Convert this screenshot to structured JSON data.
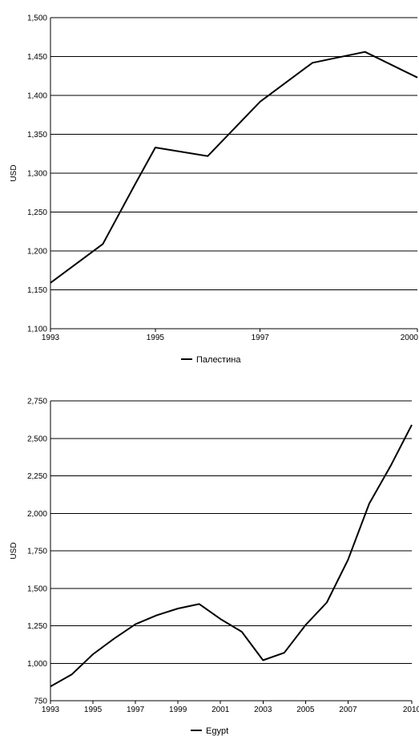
{
  "chart_data": [
    {
      "type": "line",
      "ylabel": "USD",
      "xlabel": "",
      "x_ticks": [
        "1993",
        "1995",
        "1997",
        "2000"
      ],
      "y_ticks": [
        "1,100",
        "1,150",
        "1,200",
        "1,250",
        "1,300",
        "1,350",
        "1,400",
        "1,450",
        "1,500"
      ],
      "xlim": [
        1993,
        2000
      ],
      "ylim": [
        1100,
        1500
      ],
      "grid": "horizontal",
      "legend_position": "bottom-center",
      "series": [
        {
          "name": "Палестина",
          "color": "#000000",
          "x": [
            1993,
            1994,
            1994.6,
            1995,
            1996,
            1997,
            1998,
            1999,
            2000
          ],
          "y": [
            1159,
            1209,
            1284,
            1333,
            1322,
            1392,
            1442,
            1456,
            1423
          ]
        }
      ]
    },
    {
      "type": "line",
      "ylabel": "USD",
      "xlabel": "",
      "x_ticks": [
        "1993",
        "1995",
        "1997",
        "1999",
        "2001",
        "2003",
        "2005",
        "2007",
        "2010"
      ],
      "y_ticks": [
        "750",
        "1,000",
        "1,250",
        "1,500",
        "1,750",
        "2,000",
        "2,250",
        "2,500",
        "2,750"
      ],
      "xlim": [
        1993,
        2010
      ],
      "ylim": [
        750,
        2750
      ],
      "grid": "horizontal",
      "legend_position": "bottom-center",
      "series": [
        {
          "name": "Egypt",
          "color": "#000000",
          "x": [
            1993,
            1994,
            1995,
            1996,
            1997,
            1998,
            1999,
            2000,
            2001,
            2002,
            2003,
            2004,
            2005,
            2006,
            2007,
            2008,
            2009,
            2010
          ],
          "y": [
            845,
            925,
            1060,
            1165,
            1260,
            1320,
            1365,
            1395,
            1295,
            1210,
            1020,
            1070,
            1255,
            1405,
            1690,
            2065,
            2315,
            2590
          ]
        }
      ]
    }
  ]
}
